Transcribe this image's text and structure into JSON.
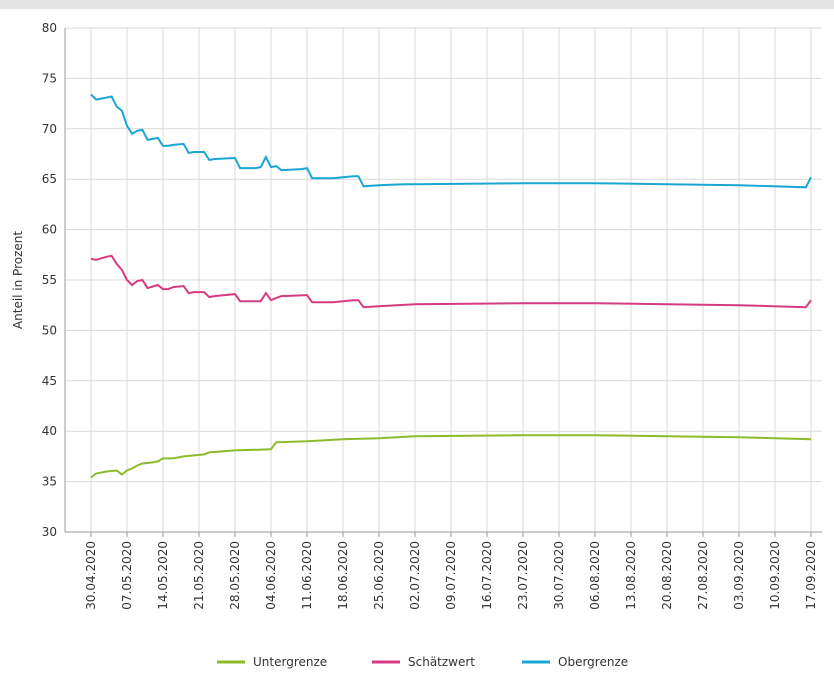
{
  "chart_data": {
    "type": "line",
    "ylabel": "Anteil in Prozent",
    "xlim": [
      "30.04.2020",
      "17.09.2020"
    ],
    "xticks": [
      "30.04.2020",
      "07.05.2020",
      "14.05.2020",
      "21.05.2020",
      "28.05.2020",
      "04.06.2020",
      "11.06.2020",
      "18.06.2020",
      "25.06.2020",
      "02.07.2020",
      "09.07.2020",
      "16.07.2020",
      "23.07.2020",
      "30.07.2020",
      "06.08.2020",
      "13.08.2020",
      "20.08.2020",
      "27.08.2020",
      "03.09.2020",
      "10.09.2020",
      "17.09.2020"
    ],
    "ylim": [
      30,
      80
    ],
    "yticks": [
      30,
      35,
      40,
      45,
      50,
      55,
      60,
      65,
      70,
      75,
      80
    ],
    "grid": true,
    "legend": "bottom",
    "series": [
      {
        "name": "Untergrenze",
        "color": "#8dba2b",
        "x": [
          "30.04.2020",
          "01.05.2020",
          "03.05.2020",
          "05.05.2020",
          "06.05.2020",
          "07.05.2020",
          "08.05.2020",
          "09.05.2020",
          "10.05.2020",
          "12.05.2020",
          "13.05.2020",
          "14.05.2020",
          "16.05.2020",
          "18.05.2020",
          "20.05.2020",
          "22.05.2020",
          "23.05.2020",
          "28.05.2020",
          "04.06.2020",
          "05.06.2020",
          "11.06.2020",
          "18.06.2020",
          "25.06.2020",
          "02.07.2020",
          "23.07.2020",
          "06.08.2020",
          "20.08.2020",
          "03.09.2020",
          "17.09.2020"
        ],
        "values": [
          35.4,
          35.8,
          36.0,
          36.1,
          35.7,
          36.1,
          36.3,
          36.6,
          36.8,
          36.9,
          37.0,
          37.3,
          37.3,
          37.5,
          37.6,
          37.7,
          37.9,
          38.1,
          38.2,
          38.9,
          39.0,
          39.2,
          39.3,
          39.5,
          39.6,
          39.6,
          39.5,
          39.4,
          39.2
        ]
      },
      {
        "name": "Schätzwert",
        "color": "#d63a80",
        "x": [
          "30.04.2020",
          "01.05.2020",
          "03.05.2020",
          "04.05.2020",
          "05.05.2020",
          "06.05.2020",
          "07.05.2020",
          "08.05.2020",
          "09.05.2020",
          "10.05.2020",
          "11.05.2020",
          "13.05.2020",
          "14.05.2020",
          "15.05.2020",
          "16.05.2020",
          "18.05.2020",
          "19.05.2020",
          "20.05.2020",
          "22.05.2020",
          "23.05.2020",
          "24.05.2020",
          "28.05.2020",
          "29.05.2020",
          "02.06.2020",
          "03.06.2020",
          "04.06.2020",
          "05.06.2020",
          "06.06.2020",
          "11.06.2020",
          "12.06.2020",
          "16.06.2020",
          "20.06.2020",
          "21.06.2020",
          "22.06.2020",
          "25.06.2020",
          "02.07.2020",
          "23.07.2020",
          "06.08.2020",
          "20.08.2020",
          "03.09.2020",
          "16.09.2020",
          "17.09.2020"
        ],
        "values": [
          57.1,
          57.0,
          57.3,
          57.4,
          56.6,
          56.0,
          55.0,
          54.5,
          54.9,
          55.0,
          54.2,
          54.5,
          54.1,
          54.1,
          54.3,
          54.4,
          53.7,
          53.8,
          53.8,
          53.3,
          53.4,
          53.6,
          52.9,
          52.9,
          53.7,
          53.0,
          53.2,
          53.4,
          53.5,
          52.8,
          52.8,
          53.0,
          53.0,
          52.3,
          52.4,
          52.6,
          52.7,
          52.7,
          52.6,
          52.5,
          52.3,
          53.0
        ]
      },
      {
        "name": "Obergrenze",
        "color": "#1aa6d4",
        "x": [
          "30.04.2020",
          "01.05.2020",
          "03.05.2020",
          "04.05.2020",
          "05.05.2020",
          "06.05.2020",
          "07.05.2020",
          "08.05.2020",
          "09.05.2020",
          "10.05.2020",
          "11.05.2020",
          "12.05.2020",
          "13.05.2020",
          "14.05.2020",
          "15.05.2020",
          "16.05.2020",
          "18.05.2020",
          "19.05.2020",
          "20.05.2020",
          "22.05.2020",
          "23.05.2020",
          "24.05.2020",
          "28.05.2020",
          "29.05.2020",
          "01.06.2020",
          "02.06.2020",
          "03.06.2020",
          "04.06.2020",
          "05.06.2020",
          "06.06.2020",
          "10.06.2020",
          "11.06.2020",
          "12.06.2020",
          "16.06.2020",
          "20.06.2020",
          "21.06.2020",
          "22.06.2020",
          "25.06.2020",
          "30.06.2020",
          "02.07.2020",
          "23.07.2020",
          "06.08.2020",
          "20.08.2020",
          "03.09.2020",
          "16.09.2020",
          "17.09.2020"
        ],
        "values": [
          73.4,
          72.9,
          73.1,
          73.2,
          72.2,
          71.8,
          70.3,
          69.5,
          69.8,
          69.9,
          68.9,
          69.0,
          69.1,
          68.3,
          68.3,
          68.4,
          68.5,
          67.6,
          67.7,
          67.7,
          66.9,
          67.0,
          67.1,
          66.1,
          66.1,
          66.2,
          67.2,
          66.2,
          66.3,
          65.9,
          66.0,
          66.1,
          65.1,
          65.1,
          65.3,
          65.3,
          64.3,
          64.4,
          64.5,
          64.5,
          64.6,
          64.6,
          64.5,
          64.4,
          64.2,
          65.2
        ]
      }
    ]
  }
}
